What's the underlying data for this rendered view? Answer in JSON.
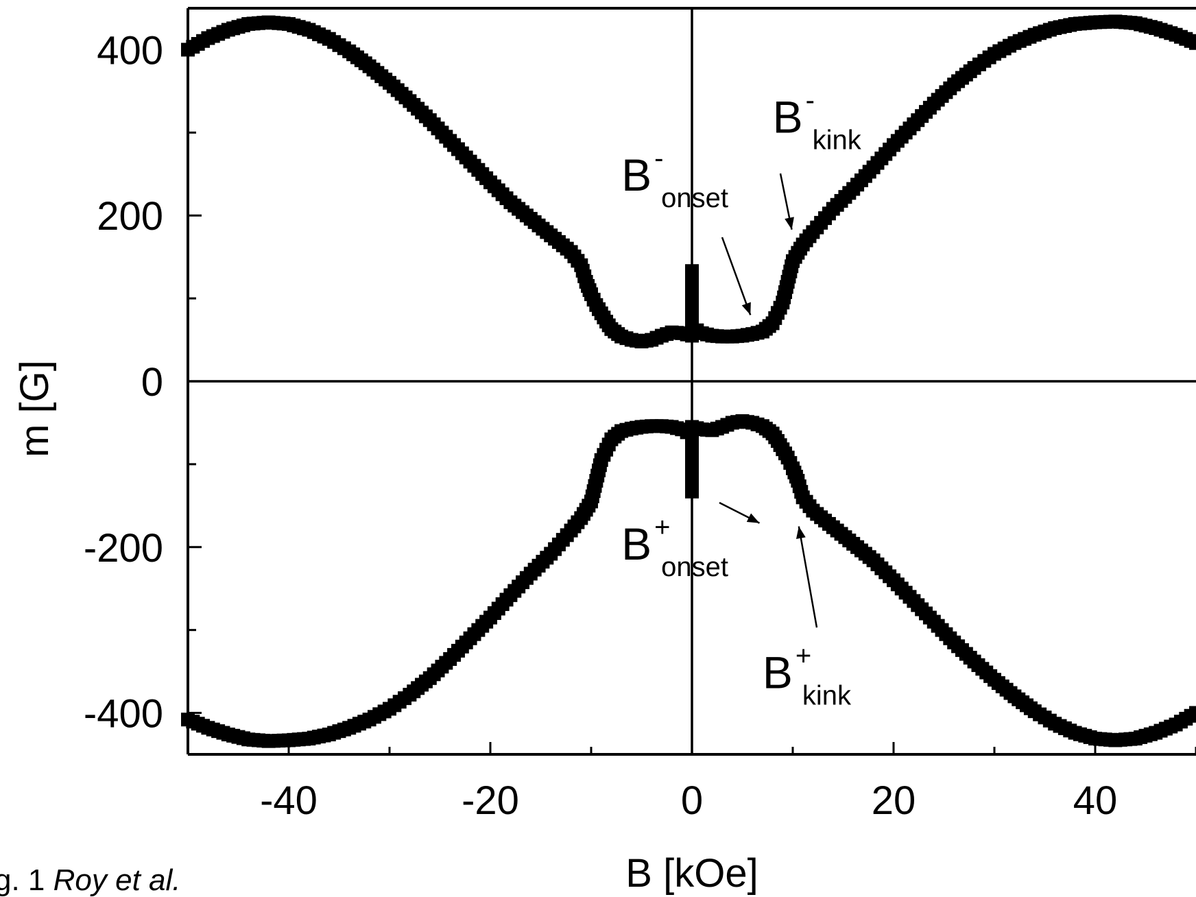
{
  "chart_data": {
    "type": "scatter",
    "title": "",
    "xlabel": "B [kOe]",
    "ylabel": "m [G]",
    "xlim": [
      -50,
      50
    ],
    "ylim": [
      -450,
      450
    ],
    "x_ticks": [
      -40,
      -20,
      0,
      20,
      40
    ],
    "y_ticks": [
      -400,
      -200,
      0,
      200,
      400
    ],
    "x_tick_labels": [
      "-40",
      "-20",
      "0",
      "20",
      "40"
    ],
    "y_tick_labels": [
      "-400",
      "-200",
      "0",
      "200",
      "400"
    ],
    "zero_lines": true,
    "series": [
      {
        "marker": "square",
        "color": "#000000",
        "points": [
          [
            -50,
            400
          ],
          [
            -48,
            414
          ],
          [
            -46,
            424
          ],
          [
            -44,
            431
          ],
          [
            -42,
            433
          ],
          [
            -40,
            431
          ],
          [
            -38,
            424
          ],
          [
            -36,
            413
          ],
          [
            -34,
            398
          ],
          [
            -32,
            380
          ],
          [
            -30,
            360
          ],
          [
            -28,
            338
          ],
          [
            -26,
            315
          ],
          [
            -24,
            290
          ],
          [
            -22,
            265
          ],
          [
            -20,
            240
          ],
          [
            -18,
            216
          ],
          [
            -16,
            196
          ],
          [
            -14,
            176
          ],
          [
            -12,
            156
          ],
          [
            -11,
            140
          ],
          [
            -10.5,
            120
          ],
          [
            -10,
            105
          ],
          [
            -9.5,
            92
          ],
          [
            -9,
            82
          ],
          [
            -8.5,
            72
          ],
          [
            -8,
            63
          ],
          [
            -7,
            54
          ],
          [
            -6,
            50
          ],
          [
            -5,
            48
          ],
          [
            -4,
            50
          ],
          [
            -3,
            55
          ],
          [
            -2,
            59
          ],
          [
            -1,
            58
          ],
          [
            0,
            55
          ],
          [
            0,
            133
          ],
          [
            0,
            65
          ],
          [
            1,
            58
          ],
          [
            2,
            55
          ],
          [
            3,
            54
          ],
          [
            4,
            54
          ],
          [
            5,
            55
          ],
          [
            6,
            57
          ],
          [
            7,
            60
          ],
          [
            8,
            70
          ],
          [
            9,
            95
          ],
          [
            9.5,
            120
          ],
          [
            10,
            145
          ],
          [
            11,
            165
          ],
          [
            12,
            180
          ],
          [
            14,
            208
          ],
          [
            16,
            232
          ],
          [
            18,
            258
          ],
          [
            20,
            285
          ],
          [
            22,
            310
          ],
          [
            24,
            335
          ],
          [
            26,
            358
          ],
          [
            28,
            378
          ],
          [
            30,
            395
          ],
          [
            32,
            408
          ],
          [
            34,
            418
          ],
          [
            36,
            426
          ],
          [
            38,
            431
          ],
          [
            40,
            433
          ],
          [
            42,
            434
          ],
          [
            44,
            432
          ],
          [
            46,
            426
          ],
          [
            48,
            418
          ],
          [
            50,
            408
          ]
        ]
      },
      {
        "marker": "square",
        "color": "#000000",
        "points": [
          [
            -50,
            -408
          ],
          [
            -48,
            -418
          ],
          [
            -46,
            -426
          ],
          [
            -44,
            -432
          ],
          [
            -42,
            -434
          ],
          [
            -40,
            -433
          ],
          [
            -38,
            -431
          ],
          [
            -36,
            -426
          ],
          [
            -34,
            -418
          ],
          [
            -32,
            -408
          ],
          [
            -30,
            -395
          ],
          [
            -28,
            -378
          ],
          [
            -26,
            -358
          ],
          [
            -24,
            -335
          ],
          [
            -22,
            -310
          ],
          [
            -20,
            -285
          ],
          [
            -18,
            -258
          ],
          [
            -16,
            -232
          ],
          [
            -14,
            -208
          ],
          [
            -12,
            -180
          ],
          [
            -11,
            -165
          ],
          [
            -10,
            -145
          ],
          [
            -9.5,
            -120
          ],
          [
            -9,
            -95
          ],
          [
            -8,
            -70
          ],
          [
            -7,
            -60
          ],
          [
            -6,
            -57
          ],
          [
            -5,
            -55
          ],
          [
            -4,
            -54
          ],
          [
            -3,
            -54
          ],
          [
            -2,
            -55
          ],
          [
            -1,
            -58
          ],
          [
            0,
            -65
          ],
          [
            0,
            -133
          ],
          [
            0,
            -55
          ],
          [
            1,
            -58
          ],
          [
            2,
            -59
          ],
          [
            3,
            -55
          ],
          [
            4,
            -50
          ],
          [
            5,
            -48
          ],
          [
            6,
            -50
          ],
          [
            7,
            -54
          ],
          [
            8,
            -63
          ],
          [
            8.5,
            -72
          ],
          [
            9,
            -82
          ],
          [
            9.5,
            -92
          ],
          [
            10,
            -105
          ],
          [
            10.5,
            -120
          ],
          [
            11,
            -140
          ],
          [
            12,
            -156
          ],
          [
            14,
            -176
          ],
          [
            16,
            -196
          ],
          [
            18,
            -216
          ],
          [
            20,
            -240
          ],
          [
            22,
            -265
          ],
          [
            24,
            -290
          ],
          [
            26,
            -315
          ],
          [
            28,
            -338
          ],
          [
            30,
            -360
          ],
          [
            32,
            -380
          ],
          [
            34,
            -398
          ],
          [
            36,
            -413
          ],
          [
            38,
            -424
          ],
          [
            40,
            -431
          ],
          [
            42,
            -433
          ],
          [
            44,
            -431
          ],
          [
            46,
            -424
          ],
          [
            48,
            -414
          ],
          [
            50,
            -400
          ]
        ]
      }
    ],
    "annotations": [
      {
        "name": "b-minus-kink",
        "main": "B",
        "sup": "-",
        "sub": "kink",
        "x": 8,
        "y": 300,
        "arrow_to": [
          9.9,
          183
        ]
      },
      {
        "name": "b-minus-onset",
        "main": "B",
        "sup": "-",
        "sub": "onset",
        "x": -7,
        "y": 230,
        "arrow_to": [
          5.8,
          80
        ]
      },
      {
        "name": "b-plus-onset",
        "main": "B",
        "sup": "+",
        "sub": "onset",
        "x": -7,
        "y": -215,
        "arrow_to": [
          6.7,
          -171
        ]
      },
      {
        "name": "b-plus-kink",
        "main": "B",
        "sup": "+",
        "sub": "kink",
        "x": 7,
        "y": -370,
        "arrow_to": [
          10.6,
          -175
        ]
      }
    ]
  },
  "caption": {
    "prefix": "g. 1 ",
    "authors": "Roy et al."
  }
}
